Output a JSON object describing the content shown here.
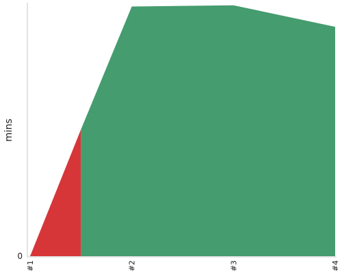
{
  "chart_data": {
    "type": "area",
    "categories": [
      "#1",
      "#2",
      "#3",
      "#4"
    ],
    "ylabel": "mins",
    "xlabel": "",
    "title": "",
    "ytick_labels": [
      "0"
    ],
    "grid": false,
    "stacked": true,
    "stepped_segments": true,
    "series": [
      {
        "color": "#d63638",
        "points": [
          [
            0,
            0
          ],
          [
            0.5,
            1
          ]
        ]
      },
      {
        "color": "#459c6e",
        "points": [
          [
            0.5,
            1
          ],
          [
            1,
            1.97
          ],
          [
            2,
            1.98
          ],
          [
            3,
            1.81
          ]
        ]
      }
    ],
    "ylim": [
      0,
      2
    ]
  }
}
